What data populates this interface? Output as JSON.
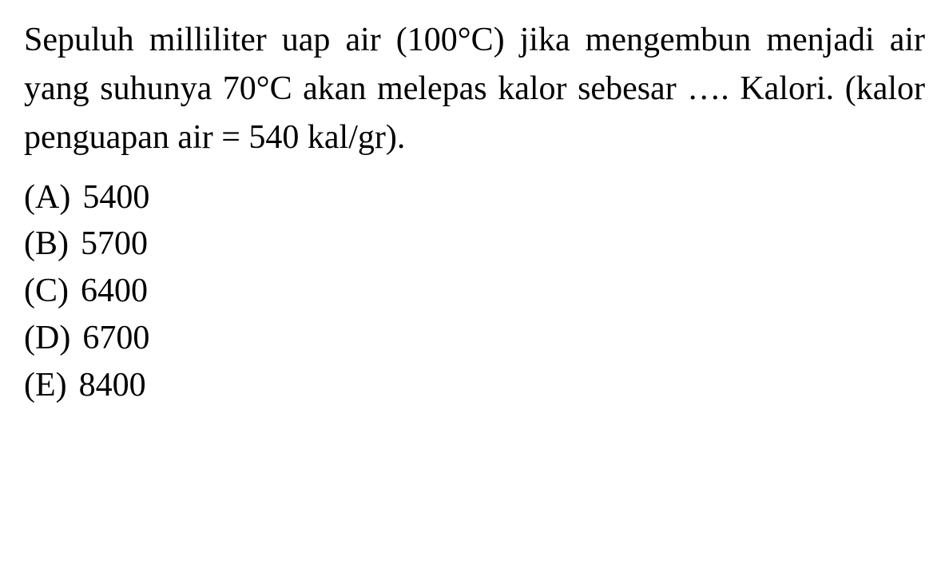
{
  "question": {
    "text": "Sepuluh milliliter uap air (100°C) jika mengembun menjadi air yang suhunya 70°C akan melepas kalor sebesar …. Kalori. (kalor penguapan air = 540 kal/gr).",
    "font_size": 42,
    "color": "#000000",
    "background_color": "#ffffff"
  },
  "options": [
    {
      "label": "(A)",
      "value": "5400"
    },
    {
      "label": "(B)",
      "value": "5700"
    },
    {
      "label": "(C)",
      "value": "6400"
    },
    {
      "label": "(D)",
      "value": "6700"
    },
    {
      "label": "(E)",
      "value": "8400"
    }
  ],
  "styling": {
    "font_family": "Georgia, Times New Roman, serif",
    "line_height": 1.45,
    "text_color": "#000000",
    "background_color": "#ffffff"
  }
}
